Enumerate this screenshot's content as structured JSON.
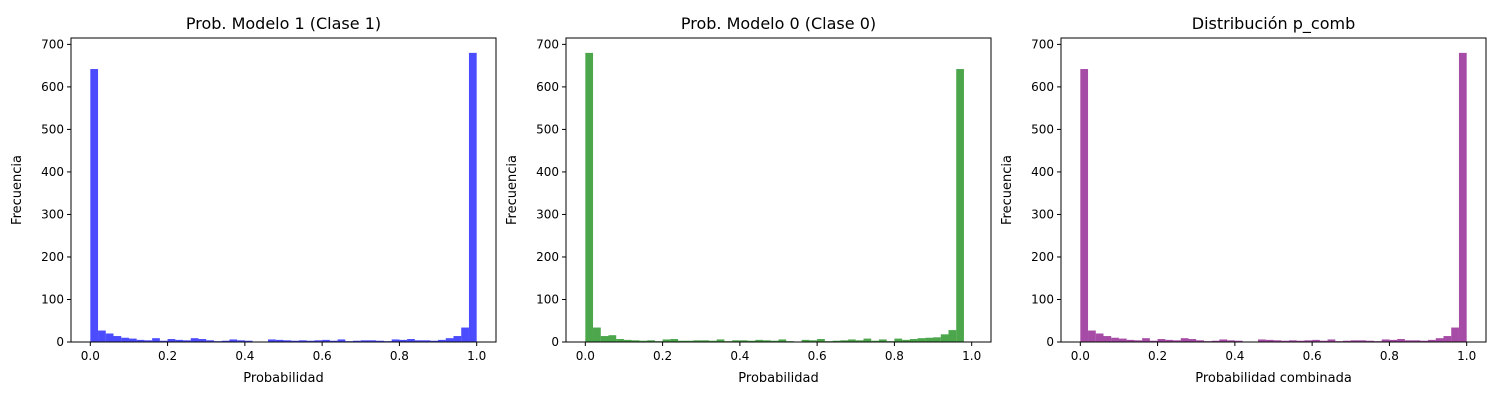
{
  "chart_data": [
    {
      "type": "bar",
      "title": "Prob. Modelo 1 (Clase 1)",
      "xlabel": "Probabilidad",
      "ylabel": "Frecuencia",
      "xlim": [
        -0.05,
        1.05
      ],
      "ylim": [
        0,
        715
      ],
      "xticks": [
        "0.0",
        "0.2",
        "0.4",
        "0.6",
        "0.8",
        "1.0"
      ],
      "yticks": [
        "0",
        "100",
        "200",
        "300",
        "400",
        "500",
        "600",
        "700"
      ],
      "bin_range": [
        0,
        1
      ],
      "bins": 50,
      "color": "#0000ff",
      "values": [
        642,
        27,
        20,
        14,
        10,
        8,
        5,
        4,
        9,
        3,
        7,
        5,
        4,
        9,
        7,
        4,
        2,
        3,
        6,
        4,
        3,
        0,
        0,
        6,
        5,
        4,
        3,
        4,
        3,
        4,
        5,
        3,
        6,
        2,
        3,
        4,
        4,
        3,
        2,
        6,
        5,
        7,
        4,
        4,
        3,
        5,
        9,
        14,
        34,
        680
      ]
    },
    {
      "type": "bar",
      "title": "Prob. Modelo 0 (Clase 0)",
      "xlabel": "Probabilidad",
      "ylabel": "Frecuencia",
      "xlim": [
        -0.05,
        1.05
      ],
      "ylim": [
        0,
        715
      ],
      "xticks": [
        "0.0",
        "0.2",
        "0.4",
        "0.6",
        "0.8",
        "1.0"
      ],
      "yticks": [
        "0",
        "100",
        "200",
        "300",
        "400",
        "500",
        "600",
        "700"
      ],
      "bin_range": [
        0,
        1
      ],
      "bins": 50,
      "color": "#008000",
      "values": [
        680,
        34,
        14,
        16,
        7,
        5,
        4,
        3,
        4,
        2,
        6,
        7,
        3,
        3,
        4,
        4,
        3,
        6,
        2,
        4,
        4,
        3,
        5,
        4,
        3,
        6,
        2,
        1,
        5,
        4,
        7,
        2,
        3,
        4,
        6,
        4,
        8,
        3,
        6,
        2,
        8,
        5,
        7,
        9,
        10,
        11,
        18,
        28,
        642,
        0
      ]
    },
    {
      "type": "bar",
      "title": "Distribución p_comb",
      "xlabel": "Probabilidad combinada",
      "ylabel": "Frecuencia",
      "xlim": [
        -0.05,
        1.05
      ],
      "ylim": [
        0,
        715
      ],
      "xticks": [
        "0.0",
        "0.2",
        "0.4",
        "0.6",
        "0.8",
        "1.0"
      ],
      "yticks": [
        "0",
        "100",
        "200",
        "300",
        "400",
        "500",
        "600",
        "700"
      ],
      "bin_range": [
        0,
        1
      ],
      "bins": 50,
      "color": "#800080",
      "values": [
        642,
        27,
        20,
        14,
        10,
        8,
        5,
        4,
        9,
        3,
        7,
        5,
        4,
        9,
        7,
        4,
        2,
        3,
        6,
        4,
        3,
        0,
        0,
        6,
        5,
        4,
        3,
        4,
        3,
        4,
        5,
        3,
        6,
        2,
        3,
        4,
        4,
        3,
        2,
        6,
        5,
        7,
        4,
        4,
        3,
        5,
        9,
        14,
        34,
        680
      ]
    }
  ]
}
